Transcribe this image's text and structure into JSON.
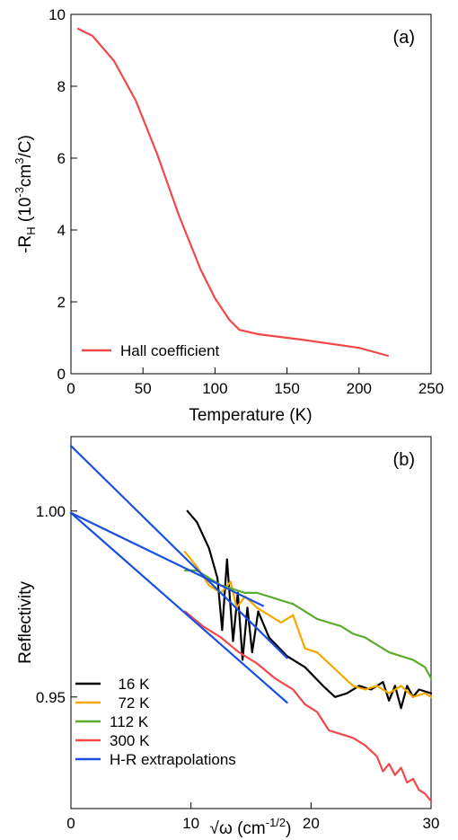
{
  "chart_data": [
    {
      "type": "line",
      "panel_label": "(a)",
      "xlabel": "Temperature (K)",
      "ylabel": "-R_H (10^-3 cm^3/C)",
      "ylabel_parts": {
        "a": "-R",
        "b": "H",
        "c": " (10",
        "d": "-3",
        "e": "cm",
        "f": "3",
        "g": "/C)"
      },
      "xlim": [
        0,
        250
      ],
      "ylim": [
        0,
        10
      ],
      "xticks": [
        0,
        50,
        100,
        150,
        200,
        250
      ],
      "yticks": [
        0,
        2,
        4,
        6,
        8,
        10
      ],
      "legend_position": "bottom-left",
      "series": [
        {
          "name": "Hall coefficient",
          "color": "#f0484b",
          "x": [
            5,
            15,
            30,
            45,
            60,
            75,
            90,
            100,
            110,
            117,
            130,
            160,
            200,
            220
          ],
          "y": [
            9.6,
            9.4,
            8.7,
            7.6,
            6.1,
            4.4,
            2.9,
            2.1,
            1.5,
            1.22,
            1.1,
            0.95,
            0.72,
            0.5
          ]
        }
      ]
    },
    {
      "type": "line",
      "panel_label": "(b)",
      "xlabel": "√ω (cm⁻¹ᐟ²)",
      "xlabel_parts": {
        "a": "√ω (cm",
        "b": "-1/2",
        "c": ")"
      },
      "ylabel": "Reflectivity",
      "xlim": [
        0,
        30
      ],
      "ylim": [
        0.92,
        1.02
      ],
      "xticks": [
        0,
        10,
        20,
        30
      ],
      "yticks": [
        0.95,
        1.0
      ],
      "ytick_labels": [
        "0.95",
        "1.00"
      ],
      "legend_position": "bottom-left",
      "series": [
        {
          "name": "16 K",
          "label": "  16 K",
          "color": "#000000",
          "x": [
            9.7,
            10.5,
            11.5,
            12.2,
            12.6,
            13.0,
            13.5,
            13.9,
            14.3,
            14.7,
            15.1,
            15.6,
            16.5,
            18,
            19.5,
            21,
            22,
            23,
            24,
            25,
            26,
            26.5,
            27,
            27.5,
            28,
            28.5,
            29,
            30
          ],
          "y": [
            1.0,
            0.997,
            0.99,
            0.982,
            0.968,
            0.987,
            0.965,
            0.978,
            0.96,
            0.974,
            0.962,
            0.973,
            0.966,
            0.961,
            0.958,
            0.953,
            0.95,
            0.951,
            0.953,
            0.952,
            0.954,
            0.949,
            0.953,
            0.947,
            0.953,
            0.95,
            0.952,
            0.951
          ]
        },
        {
          "name": "72 K",
          "label": "  72 K",
          "color": "#f5a800",
          "x": [
            9.5,
            10.5,
            11.5,
            12.5,
            13.3,
            13.8,
            14.5,
            15.5,
            16.5,
            17.5,
            18.5,
            19.5,
            20.5,
            21.5,
            22.5,
            23.5,
            24.5,
            25.5,
            26.5,
            27.5,
            28.5,
            29.5,
            30
          ],
          "y": [
            0.989,
            0.985,
            0.98,
            0.978,
            0.981,
            0.974,
            0.977,
            0.974,
            0.972,
            0.97,
            0.972,
            0.963,
            0.962,
            0.959,
            0.956,
            0.953,
            0.952,
            0.953,
            0.951,
            0.953,
            0.95,
            0.951,
            0.95
          ]
        },
        {
          "name": "112 K",
          "label": "112 K",
          "color": "#5aac2e",
          "x": [
            9.5,
            10.5,
            11.5,
            12.5,
            13.5,
            14.5,
            15.5,
            16.5,
            17.5,
            18.5,
            19.5,
            20.5,
            21.5,
            22.5,
            23.5,
            24.5,
            25.5,
            26.5,
            27.5,
            28.5,
            29.5,
            30
          ],
          "y": [
            0.984,
            0.984,
            0.982,
            0.98,
            0.979,
            0.978,
            0.978,
            0.977,
            0.976,
            0.975,
            0.973,
            0.971,
            0.97,
            0.969,
            0.967,
            0.966,
            0.964,
            0.962,
            0.961,
            0.96,
            0.958,
            0.955
          ]
        },
        {
          "name": "300 K",
          "label": "300 K",
          "color": "#f0484b",
          "x": [
            9.5,
            11,
            12.5,
            14,
            15.5,
            17,
            18.5,
            19.5,
            20.5,
            21.5,
            22.5,
            23.5,
            24.5,
            25.5,
            26,
            26.5,
            27,
            27.5,
            28,
            28.5,
            29,
            29.5,
            30
          ],
          "y": [
            0.973,
            0.969,
            0.966,
            0.962,
            0.959,
            0.955,
            0.952,
            0.948,
            0.946,
            0.941,
            0.94,
            0.939,
            0.937,
            0.934,
            0.93,
            0.932,
            0.929,
            0.931,
            0.927,
            0.928,
            0.925,
            0.924,
            0.922
          ]
        },
        {
          "name": "H-R extrapolations",
          "label": "H-R extrapolations",
          "color": "#1a4fe0",
          "segments": [
            {
              "x": [
                0,
                18
              ],
              "y": [
                1.0175,
                0.9605
              ]
            },
            {
              "x": [
                0,
                16
              ],
              "y": [
                0.9995,
                0.9745
              ]
            },
            {
              "x": [
                0,
                18
              ],
              "y": [
                0.9995,
                0.9485
              ]
            }
          ]
        }
      ]
    }
  ]
}
